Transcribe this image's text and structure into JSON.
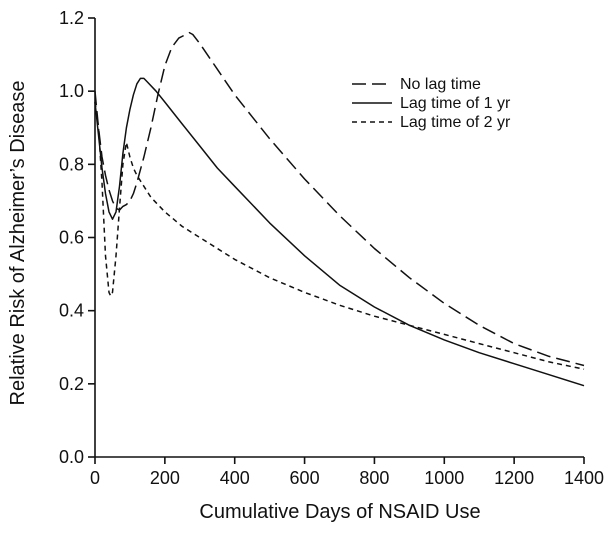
{
  "chart_data": {
    "type": "line",
    "title": "",
    "xlabel": "Cumulative Days of NSAID Use",
    "ylabel": "Relative Risk of Alzheimer’s Disease",
    "xlim": [
      0,
      1400
    ],
    "ylim": [
      0.0,
      1.2
    ],
    "xticks": [
      "0",
      "200",
      "400",
      "600",
      "800",
      "1000",
      "1200",
      "1400"
    ],
    "yticks": [
      "0.0",
      "0.2",
      "0.4",
      "0.6",
      "0.8",
      "1.0",
      "1.2"
    ],
    "grid": false,
    "legend_position": "top-right",
    "series": [
      {
        "name": "No lag time",
        "style": "long-dash",
        "x": [
          0,
          10,
          20,
          30,
          40,
          50,
          60,
          70,
          80,
          90,
          100,
          110,
          120,
          140,
          160,
          180,
          200,
          220,
          240,
          260,
          270,
          280,
          300,
          350,
          400,
          450,
          500,
          600,
          700,
          800,
          900,
          1000,
          1100,
          1200,
          1300,
          1400
        ],
        "y": [
          1.0,
          0.9,
          0.82,
          0.77,
          0.73,
          0.7,
          0.68,
          0.675,
          0.685,
          0.69,
          0.7,
          0.72,
          0.75,
          0.82,
          0.9,
          0.99,
          1.07,
          1.12,
          1.145,
          1.155,
          1.16,
          1.155,
          1.13,
          1.06,
          0.99,
          0.93,
          0.87,
          0.76,
          0.66,
          0.57,
          0.49,
          0.42,
          0.36,
          0.31,
          0.275,
          0.25
        ]
      },
      {
        "name": "Lag time of 1 yr",
        "style": "solid",
        "x": [
          0,
          10,
          20,
          30,
          40,
          50,
          60,
          70,
          80,
          90,
          100,
          110,
          120,
          130,
          140,
          150,
          175,
          200,
          250,
          300,
          350,
          400,
          450,
          500,
          600,
          700,
          800,
          900,
          1000,
          1100,
          1200,
          1300,
          1400
        ],
        "y": [
          0.97,
          0.88,
          0.79,
          0.72,
          0.67,
          0.65,
          0.67,
          0.74,
          0.83,
          0.9,
          0.95,
          0.99,
          1.02,
          1.035,
          1.035,
          1.025,
          1.0,
          0.97,
          0.91,
          0.85,
          0.79,
          0.74,
          0.69,
          0.64,
          0.55,
          0.47,
          0.41,
          0.36,
          0.32,
          0.285,
          0.255,
          0.225,
          0.195
        ]
      },
      {
        "name": "Lag time of 2 yr",
        "style": "short-dash",
        "x": [
          0,
          10,
          20,
          30,
          40,
          45,
          50,
          60,
          70,
          80,
          90,
          100,
          110,
          120,
          140,
          160,
          200,
          250,
          300,
          400,
          500,
          600,
          700,
          800,
          900,
          1000,
          1100,
          1200,
          1300,
          1400
        ],
        "y": [
          0.97,
          0.9,
          0.75,
          0.55,
          0.45,
          0.44,
          0.45,
          0.55,
          0.68,
          0.8,
          0.86,
          0.82,
          0.79,
          0.77,
          0.74,
          0.71,
          0.67,
          0.63,
          0.6,
          0.54,
          0.49,
          0.45,
          0.415,
          0.385,
          0.36,
          0.335,
          0.31,
          0.285,
          0.26,
          0.24
        ]
      }
    ]
  }
}
